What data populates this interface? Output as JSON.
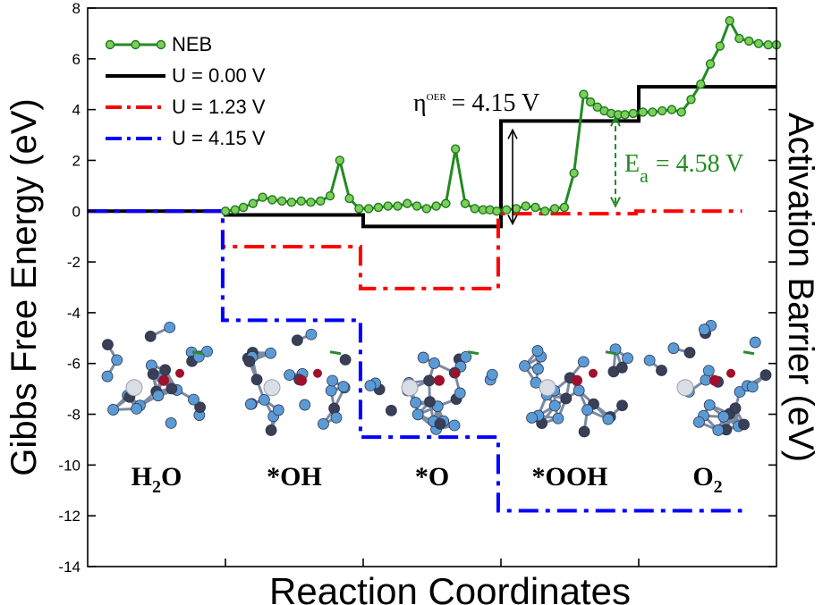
{
  "chart_data": {
    "type": "line",
    "xlabel": "Reaction Coordinates",
    "ylabel": "Gibbs Free Energy (eV)",
    "y2label": "Activation Barrier (eV)",
    "ylim": [
      -14,
      8
    ],
    "xlim": [
      0,
      5
    ],
    "y_ticks": [
      -14,
      -12,
      -10,
      -8,
      -6,
      -4,
      -2,
      0,
      2,
      4,
      6,
      8
    ],
    "x_ticks": [
      1,
      2,
      3,
      4
    ],
    "grid": false,
    "legend_position": "top-left",
    "states": [
      "H2O",
      "*OH",
      "*O",
      "*OOH",
      "O2"
    ],
    "state_labels": [
      {
        "base": "H",
        "sub": "2",
        "rest": "O"
      },
      {
        "base": "*OH",
        "sub": "",
        "rest": ""
      },
      {
        "base": "*O",
        "sub": "",
        "rest": ""
      },
      {
        "base": "*OOH",
        "sub": "",
        "rest": ""
      },
      {
        "base": "O",
        "sub": "2",
        "rest": ""
      }
    ],
    "series": [
      {
        "name": "U = 0.00 V",
        "color": "#000000",
        "style": "solid",
        "levels": [
          0.0,
          -0.15,
          -0.6,
          3.55,
          4.9
        ]
      },
      {
        "name": "U = 1.23 V",
        "color": "#ff0000",
        "style": "dash-dot",
        "levels": [
          0.0,
          -1.4,
          -3.05,
          -0.1,
          0.0
        ]
      },
      {
        "name": "U = 4.15 V",
        "color": "#0000ff",
        "style": "dash-dot",
        "levels": [
          0.0,
          -4.3,
          -8.9,
          -11.8,
          -11.8
        ]
      },
      {
        "name": "NEB",
        "color": "#228b22",
        "style": "line-with-markers",
        "x": [
          1.0,
          1.07,
          1.13,
          1.2,
          1.27,
          1.34,
          1.41,
          1.48,
          1.55,
          1.62,
          1.69,
          1.76,
          1.83,
          1.9,
          1.97,
          2.04,
          2.11,
          2.18,
          2.25,
          2.32,
          2.39,
          2.46,
          2.53,
          2.6,
          2.67,
          2.74,
          2.81,
          2.87,
          2.92,
          2.97,
          3.04,
          3.11,
          3.18,
          3.25,
          3.32,
          3.39,
          3.46,
          3.53,
          3.6,
          3.65,
          3.7,
          3.75,
          3.8,
          3.85,
          3.9,
          3.96,
          4.03,
          4.1,
          4.17,
          4.24,
          4.31,
          4.38,
          4.45,
          4.52,
          4.59,
          4.66,
          4.73,
          4.8,
          4.87,
          4.94,
          5.0
        ],
        "values": [
          0.0,
          0.05,
          0.15,
          0.3,
          0.55,
          0.45,
          0.4,
          0.35,
          0.4,
          0.35,
          0.4,
          0.6,
          2.0,
          0.5,
          0.1,
          0.1,
          0.15,
          0.2,
          0.2,
          0.3,
          0.2,
          0.1,
          0.2,
          0.3,
          2.45,
          0.3,
          0.1,
          0.05,
          0.05,
          0.0,
          0.05,
          0.1,
          0.2,
          0.15,
          0.0,
          0.1,
          0.15,
          1.5,
          4.6,
          4.3,
          4.1,
          3.95,
          3.85,
          3.8,
          3.8,
          3.85,
          3.9,
          3.9,
          3.95,
          4.0,
          3.9,
          4.4,
          5.0,
          5.8,
          6.5,
          7.5,
          6.8,
          6.7,
          6.6,
          6.55,
          6.55
        ]
      }
    ],
    "annotations": {
      "eta": {
        "symbol": "η",
        "superscript": "OER",
        "text": "= 4.15 V"
      },
      "ea": {
        "symbol": "E",
        "subscript": "a",
        "text": "= 4.58 V"
      }
    }
  }
}
